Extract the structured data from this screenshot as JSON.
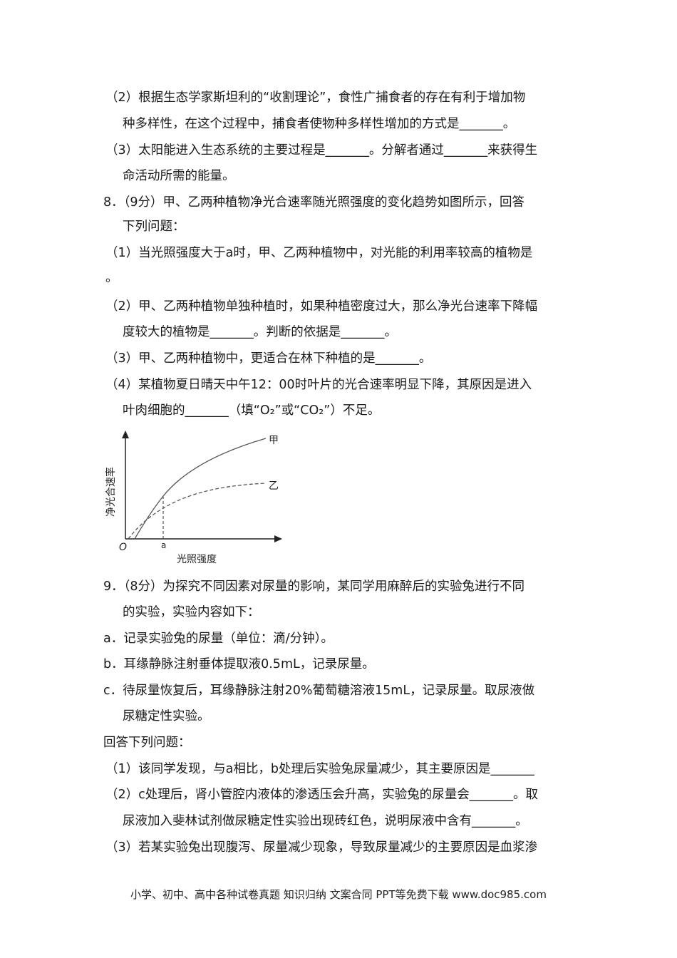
{
  "lines": [
    {
      "indent": "l1",
      "text": "（2）根据生态学家斯坦利的“收割理论”，食性广捕食者的存在有利于增加物"
    },
    {
      "indent": "l2",
      "text": "种多样性，在这个过程中，捕食者使物种多样性增加的方式是_______。"
    },
    {
      "indent": "l1",
      "text": "（3）太阳能进入生态系统的主要过程是_______。分解者通过_______来获得生"
    },
    {
      "indent": "l2",
      "text": "命活动所需的能量。"
    },
    {
      "indent": "l0",
      "text": "8．（9分）甲、乙两种植物净光合速率随光照强度的变化趋势如图所示，回答"
    },
    {
      "indent": "l2",
      "text": "下列问题："
    },
    {
      "indent": "l1",
      "text": "（1）当光照强度大于a时，甲、乙两种植物中，对光能的利用率较高的植物是"
    },
    {
      "indent": "l1",
      "text": "。"
    },
    {
      "indent": "l1",
      "text": "（2）甲、乙两种植物单独种植时，如果种植密度过大，那么净光台速率下降幅"
    },
    {
      "indent": "l2",
      "text": "度较大的植物是_______。判断的依据是_______。"
    },
    {
      "indent": "l1",
      "text": "（3）甲、乙两种植物中，更适合在林下种植的是_______。"
    },
    {
      "indent": "l1",
      "text": "（4）某植物夏日晴天中午12：00时叶片的光合速率明显下降，其原因是进入"
    },
    {
      "indent": "l2",
      "text": "叶肉细胞的_______（填“O₂”或“CO₂”）不足。"
    },
    {
      "indent": "l0",
      "text": "9．（8分）为探究不同因素对尿量的影响，某同学用麻醉后的实验兔进行不同"
    },
    {
      "indent": "l2",
      "text": "的实验，实验内容如下："
    },
    {
      "indent": "l0",
      "text": "a．记录实验兔的尿量（单位：滴/分钟）。"
    },
    {
      "indent": "l0",
      "text": "b．耳缘静脉注射垂体提取液0.5mL，记录尿量。"
    },
    {
      "indent": "l0",
      "text": "c．待尿量恢复后，耳缘静脉注射20%葡萄糖溶液15mL，记录尿量。取尿液做"
    },
    {
      "indent": "l2",
      "text": "尿糖定性实验。"
    },
    {
      "indent": "l0",
      "text": "回答下列问题："
    },
    {
      "indent": "l1",
      "text": "（1）该同学发现，与a相比，b处理后实验兔尿量减少，其主要原因是_______"
    },
    {
      "indent": "l1",
      "text": "（2）c处理后，肾小管腔内液体的渗透压会升高，实验兔的尿量会_______。取"
    },
    {
      "indent": "l2",
      "text": "尿液加入斐林试剂做尿糖定性实验出现砖红色，说明尿液中含有_______。"
    },
    {
      "indent": "l1",
      "text": "（3）若某实验兔出现腹泻、尿量减少现象，导致尿量减少的主要原因是血浆渗"
    }
  ],
  "chart_data": {
    "type": "line",
    "xlabel": "光照强度",
    "ylabel": "净光合速率",
    "origin_label": "O",
    "x_ticks": [
      "a"
    ],
    "grid": false,
    "series": [
      {
        "name": "甲",
        "style": "solid",
        "color": "#555555"
      },
      {
        "name": "乙",
        "style": "dashed",
        "color": "#555555"
      }
    ]
  },
  "footer": "小学、初中、高中各种试卷真题  知识归纳  文案合同  PPT等免费下载     www.doc985.com"
}
